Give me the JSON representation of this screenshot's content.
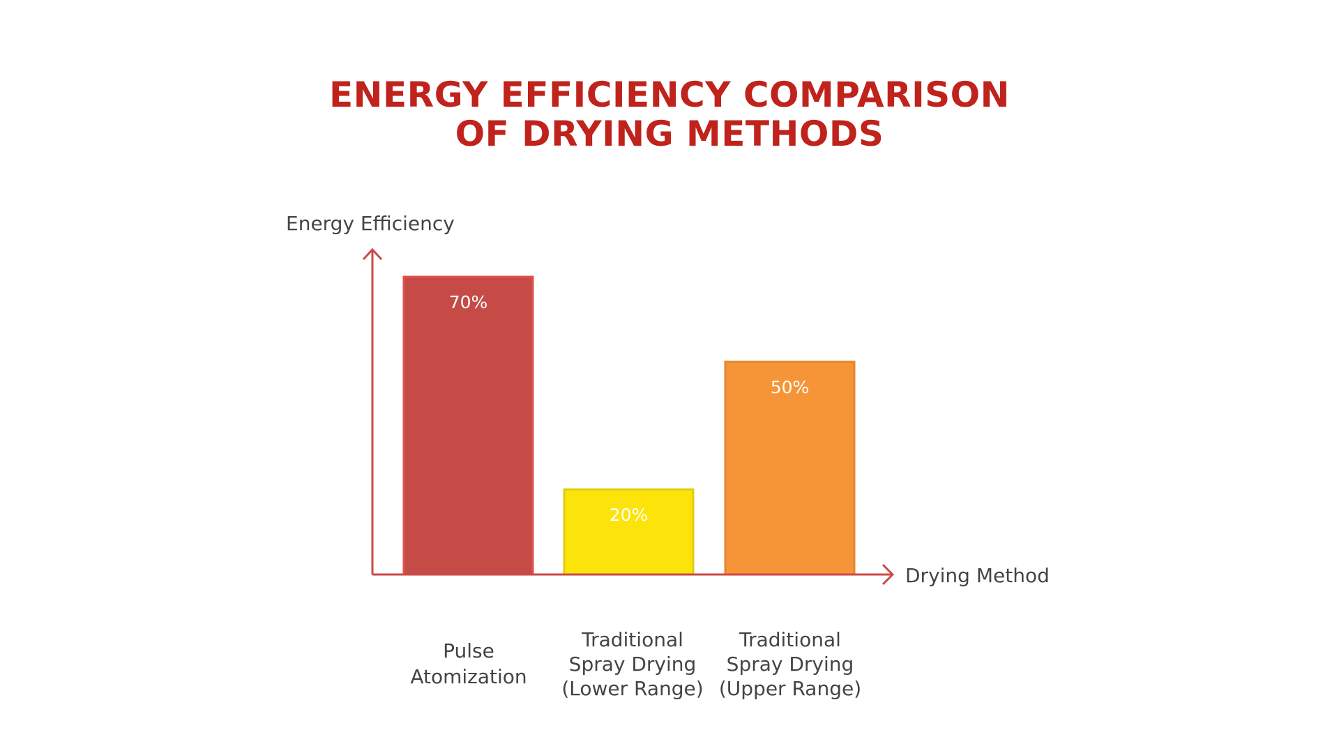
{
  "chart_data": {
    "type": "bar",
    "title_lines": [
      "ENERGY EFFICIENCY COMPARISON",
      "OF DRYING METHODS"
    ],
    "xlabel": "Drying Method",
    "ylabel": "Energy Efficiency",
    "categories": [
      [
        "Pulse",
        "Atomization"
      ],
      [
        "Traditional",
        "Spray Drying",
        "(Lower Range)"
      ],
      [
        "Traditional",
        "Spray Drying",
        "(Upper Range)"
      ]
    ],
    "values": [
      70,
      20,
      50
    ],
    "data_labels": [
      "70%",
      "20%",
      "50%"
    ],
    "unit": "%",
    "colors": [
      "#C64B47",
      "#FCE40B",
      "#F69537"
    ],
    "border_colors": [
      "#E0514D",
      "#E0CC10",
      "#E8852E"
    ],
    "axis_color": "#C94A47",
    "title_color": "#C0221C",
    "grid": false,
    "legend": "none"
  }
}
